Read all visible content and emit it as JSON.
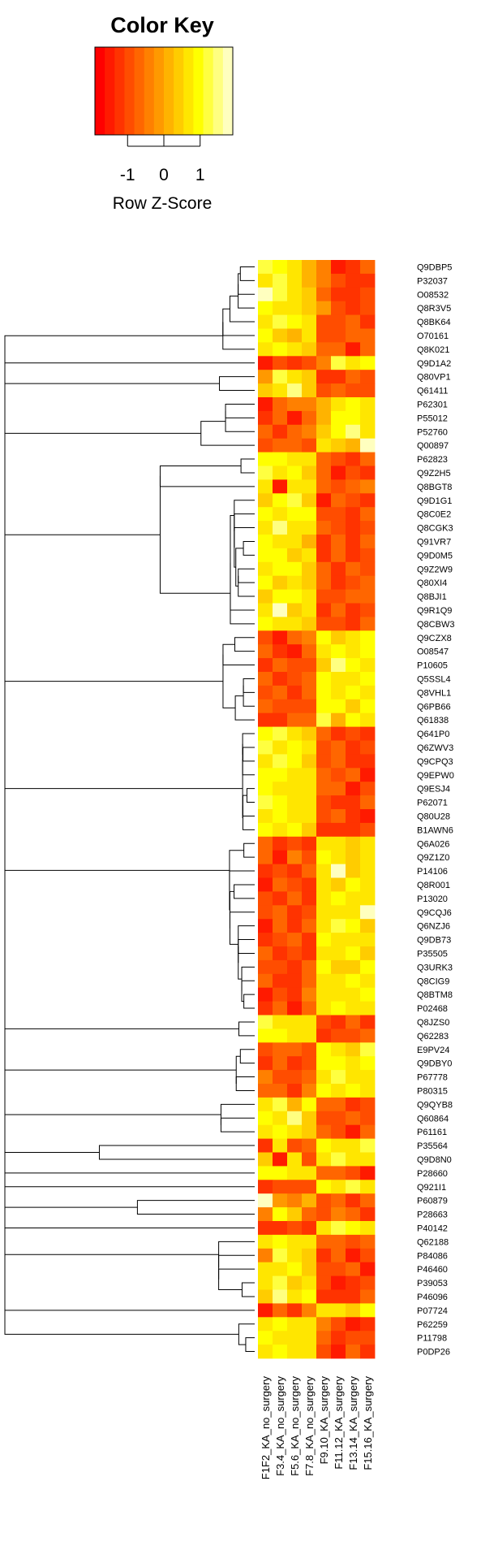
{
  "chart_data": {
    "type": "heatmap",
    "title": "",
    "color_key": {
      "title": "Color Key",
      "label": "Row Z-Score",
      "ticks": [
        {
          "value": -1,
          "label": "-1"
        },
        {
          "value": 0,
          "label": "0"
        },
        {
          "value": 1,
          "label": "1"
        }
      ],
      "range": [
        -1.9,
        1.9
      ],
      "palette": [
        "#ff0000",
        "#ff1a00",
        "#ff3300",
        "#ff4d00",
        "#ff6600",
        "#ff8000",
        "#ff9900",
        "#ffb300",
        "#ffcc00",
        "#ffe600",
        "#ffff00",
        "#ffff40",
        "#ffff80",
        "#ffffbf"
      ]
    },
    "columns": [
      "F1F2_KA_no_surgery",
      "F3.4_KA_no_surgery",
      "F5.6_KA_no_surgery",
      "F7.8_KA_no_surgery",
      "F9.10_KA_surgery",
      "F11.12_KA_surgery",
      "F13.14_KA_surgery",
      "F15.16_KA_surgery"
    ],
    "rows": [
      "Q9DBP5",
      "P32037",
      "O08532",
      "Q8R3V5",
      "Q8BK64",
      "O70161",
      "Q8K021",
      "Q9D1A2",
      "Q80VP1",
      "Q61411",
      "P62301",
      "P55012",
      "P52760",
      "Q00897",
      "P62823",
      "Q9Z2H5",
      "Q8BGT8",
      "Q9D1G1",
      "Q8C0E2",
      "Q8CGK3",
      "Q91VR7",
      "Q9D0M5",
      "Q9Z2W9",
      "Q80XI4",
      "Q8BJI1",
      "Q9R1Q9",
      "Q8CBW3",
      "Q9CZX8",
      "O08547",
      "P10605",
      "Q5SSL4",
      "Q8VHL1",
      "Q6PB66",
      "Q61838",
      "Q641P0",
      "Q6ZWV3",
      "Q9CPQ3",
      "Q9EPW0",
      "Q9ESJ4",
      "P62071",
      "Q80U28",
      "B1AWN6",
      "Q6A026",
      "Q9Z1Z0",
      "P14106",
      "Q8R001",
      "P13020",
      "Q9CQJ6",
      "Q6NZJ6",
      "Q9DB73",
      "P35505",
      "Q3URK3",
      "Q8CIG9",
      "Q8BTM8",
      "P02468",
      "Q8JZS0",
      "Q62283",
      "E9PV24",
      "Q9DBY0",
      "P67778",
      "P80315",
      "Q9QYB8",
      "Q60864",
      "P61161",
      "P35564",
      "Q9D8N0",
      "P28660",
      "Q921I1",
      "P60879",
      "P28663",
      "P40142",
      "Q62188",
      "P84086",
      "P46460",
      "P39053",
      "P46096",
      "P07724",
      "P62259",
      "P11798",
      "P0DP26"
    ],
    "values": [
      [
        1.1,
        1.0,
        0.6,
        0.1,
        -0.5,
        -1.4,
        -1.3,
        -0.7
      ],
      [
        0.8,
        1.2,
        0.8,
        0.2,
        -0.3,
        -1.0,
        -1.3,
        -1.1
      ],
      [
        1.7,
        1.1,
        0.7,
        0.3,
        -0.6,
        -1.1,
        -1.2,
        -0.9
      ],
      [
        0.9,
        0.8,
        0.8,
        0.4,
        -0.1,
        -0.9,
        -1.2,
        -1.0
      ],
      [
        0.6,
        1.3,
        0.9,
        0.6,
        -0.9,
        -1.0,
        -0.8,
        -1.2
      ],
      [
        0.9,
        0.5,
        0.1,
        0.7,
        -0.9,
        -1.0,
        -0.6,
        -0.8
      ],
      [
        0.7,
        1.0,
        0.8,
        0.5,
        -0.8,
        -0.7,
        -1.5,
        -0.8
      ],
      [
        -1.4,
        -0.9,
        -1.3,
        -1.0,
        -0.3,
        1.3,
        0.8,
        0.9
      ],
      [
        -0.2,
        1.3,
        0.8,
        0.4,
        -1.1,
        -1.1,
        -0.6,
        -0.9
      ],
      [
        0.4,
        0.7,
        1.6,
        0.5,
        -0.9,
        -0.8,
        -1.0,
        -0.9
      ],
      [
        -1.5,
        -0.8,
        -0.4,
        -0.4,
        0.1,
        0.8,
        1.0,
        0.8
      ],
      [
        -1.1,
        -0.6,
        -1.4,
        -0.6,
        0.2,
        1.0,
        0.9,
        0.7
      ],
      [
        -0.7,
        -1.2,
        -0.7,
        -0.5,
        0.5,
        0.9,
        1.5,
        0.6
      ],
      [
        -0.9,
        -0.8,
        -0.6,
        -0.9,
        0.6,
        0.3,
        0.2,
        1.8
      ],
      [
        1.0,
        0.9,
        0.8,
        0.7,
        -0.6,
        -1.0,
        -1.2,
        -0.8
      ],
      [
        1.1,
        0.8,
        0.9,
        0.5,
        -0.7,
        -1.5,
        -0.9,
        -1.1
      ],
      [
        0.7,
        -1.4,
        0.6,
        0.8,
        -0.8,
        -1.0,
        -0.7,
        -0.5
      ],
      [
        0.5,
        1.0,
        1.1,
        0.5,
        -1.5,
        -0.7,
        -0.9,
        -1.1
      ],
      [
        1.0,
        0.6,
        1.0,
        0.9,
        -0.9,
        -1.0,
        -1.2,
        -0.8
      ],
      [
        0.8,
        1.6,
        0.6,
        0.8,
        -0.8,
        -0.9,
        -1.1,
        -0.9
      ],
      [
        0.9,
        0.8,
        0.7,
        0.2,
        -1.3,
        -0.6,
        -1.2,
        -0.7
      ],
      [
        1.0,
        0.9,
        0.5,
        0.6,
        -1.1,
        -0.8,
        -1.3,
        -1.0
      ],
      [
        0.7,
        1.0,
        0.9,
        0.4,
        -0.8,
        -1.1,
        -0.6,
        -0.9
      ],
      [
        0.9,
        0.4,
        0.8,
        0.5,
        -0.7,
        -1.3,
        -1.0,
        -0.8
      ],
      [
        0.3,
        0.9,
        1.0,
        0.6,
        -0.9,
        -1.0,
        -0.8,
        -0.7
      ],
      [
        0.8,
        1.7,
        0.3,
        0.6,
        -1.2,
        -0.7,
        -1.2,
        -0.9
      ],
      [
        1.0,
        0.7,
        0.6,
        0.3,
        -0.9,
        -0.9,
        -1.1,
        -0.6
      ],
      [
        -1.0,
        -1.4,
        -0.7,
        -0.5,
        0.9,
        0.5,
        0.6,
        1.0
      ],
      [
        -0.8,
        -1.1,
        -1.4,
        -0.6,
        0.8,
        0.9,
        0.6,
        0.9
      ],
      [
        -1.1,
        -0.8,
        -1.0,
        -0.9,
        0.5,
        1.6,
        0.9,
        0.7
      ],
      [
        -0.7,
        -1.2,
        -0.9,
        -0.8,
        1.0,
        0.7,
        0.8,
        0.9
      ],
      [
        -0.9,
        -0.8,
        -1.2,
        -0.6,
        0.9,
        0.6,
        1.0,
        0.8
      ],
      [
        -0.6,
        -1.0,
        -1.0,
        -0.9,
        1.0,
        0.9,
        0.5,
        1.0
      ],
      [
        -1.2,
        -1.1,
        -0.8,
        -0.8,
        1.3,
        0.2,
        0.9,
        0.6
      ],
      [
        1.0,
        1.2,
        0.7,
        0.5,
        -0.6,
        -1.1,
        -0.9,
        -1.1
      ],
      [
        1.2,
        0.8,
        1.0,
        0.6,
        -1.0,
        -0.8,
        -1.2,
        -0.9
      ],
      [
        0.8,
        1.1,
        0.9,
        0.4,
        -0.9,
        -0.7,
        -1.1,
        -1.2
      ],
      [
        0.9,
        1.0,
        0.6,
        0.7,
        -0.8,
        -1.0,
        -0.8,
        -1.5
      ],
      [
        1.0,
        0.8,
        0.8,
        0.7,
        -0.8,
        -0.8,
        -1.4,
        -1.0
      ],
      [
        1.1,
        0.9,
        0.6,
        0.6,
        -0.9,
        -1.1,
        -1.2,
        -0.8
      ],
      [
        0.8,
        1.0,
        0.7,
        0.6,
        -1.0,
        -0.7,
        -1.3,
        -1.4
      ],
      [
        0.9,
        0.8,
        0.9,
        0.5,
        -1.3,
        -1.2,
        -1.3,
        -1.0
      ],
      [
        -0.6,
        -1.3,
        -0.9,
        -1.2,
        0.7,
        0.6,
        0.5,
        0.8
      ],
      [
        -0.8,
        -1.4,
        -0.5,
        -1.0,
        0.9,
        0.8,
        0.4,
        0.6
      ],
      [
        -1.2,
        -0.9,
        -1.3,
        -0.8,
        0.8,
        1.7,
        0.5,
        0.7
      ],
      [
        -1.4,
        -0.7,
        -1.0,
        -1.2,
        0.6,
        0.4,
        0.9,
        0.8
      ],
      [
        -0.9,
        -1.1,
        -0.8,
        -1.3,
        0.8,
        0.9,
        0.6,
        0.7
      ],
      [
        -1.0,
        -0.8,
        -1.2,
        -0.9,
        0.7,
        0.6,
        0.8,
        1.7
      ],
      [
        -1.5,
        -0.8,
        -1.1,
        -0.6,
        0.6,
        1.2,
        0.9,
        0.5
      ],
      [
        -1.3,
        -1.0,
        -0.8,
        -1.1,
        0.9,
        0.8,
        0.6,
        0.8
      ],
      [
        -0.7,
        -1.2,
        -0.9,
        -1.1,
        0.8,
        0.6,
        0.9,
        0.5
      ],
      [
        -1.0,
        -0.9,
        -1.3,
        -0.7,
        0.9,
        0.4,
        0.5,
        0.9
      ],
      [
        -0.8,
        -1.1,
        -1.2,
        -0.8,
        0.7,
        0.8,
        0.9,
        0.6
      ],
      [
        -1.5,
        -0.9,
        -1.1,
        -0.5,
        0.6,
        0.7,
        0.8,
        0.9
      ],
      [
        -1.2,
        -0.8,
        -1.4,
        -0.8,
        0.8,
        0.9,
        0.7,
        0.8
      ],
      [
        1.3,
        0.6,
        0.8,
        0.7,
        -1.0,
        -1.1,
        -0.7,
        -1.2
      ],
      [
        1.0,
        0.9,
        0.8,
        0.6,
        -1.2,
        -0.9,
        -1.0,
        -0.7
      ],
      [
        -1.0,
        -0.6,
        -0.8,
        -0.9,
        1.0,
        0.8,
        0.3,
        1.2
      ],
      [
        -1.1,
        -0.6,
        -1.3,
        -1.0,
        0.9,
        0.9,
        0.7,
        0.9
      ],
      [
        -0.4,
        -1.0,
        -1.0,
        -0.6,
        0.7,
        1.2,
        0.8,
        0.7
      ],
      [
        -0.8,
        -0.7,
        -1.2,
        -0.5,
        0.9,
        0.6,
        1.0,
        0.7
      ],
      [
        0.7,
        1.1,
        0.2,
        0.9,
        -0.7,
        -0.8,
        -1.3,
        -0.9
      ],
      [
        0.9,
        0.6,
        1.6,
        0.5,
        -0.9,
        -1.0,
        -0.7,
        -1.0
      ],
      [
        0.8,
        1.0,
        0.7,
        0.3,
        -0.8,
        -0.9,
        -1.4,
        -0.8
      ],
      [
        -1.3,
        0.7,
        -1.0,
        -0.8,
        1.0,
        0.8,
        0.6,
        1.1
      ],
      [
        0.5,
        -1.4,
        0.6,
        -0.9,
        0.8,
        1.3,
        0.6,
        0.8
      ],
      [
        0.9,
        1.0,
        0.7,
        0.8,
        -0.7,
        -0.8,
        -0.9,
        -1.5
      ],
      [
        -1.1,
        -1.0,
        -1.0,
        -0.9,
        0.9,
        0.7,
        1.1,
        0.8
      ],
      [
        1.8,
        -0.2,
        -0.4,
        0.1,
        -1.0,
        -0.8,
        -1.3,
        -0.7
      ],
      [
        -0.3,
        0.9,
        0.4,
        -0.6,
        -0.9,
        -0.5,
        -0.7,
        -1.2
      ],
      [
        -1.2,
        -1.1,
        -1.0,
        -1.2,
        0.7,
        1.3,
        0.9,
        0.6
      ],
      [
        0.8,
        0.9,
        0.6,
        0.7,
        -0.8,
        -0.6,
        -0.9,
        -0.7
      ],
      [
        -0.4,
        1.1,
        0.6,
        0.5,
        -1.3,
        -0.8,
        -1.4,
        -0.9
      ],
      [
        0.7,
        0.8,
        0.9,
        0.4,
        -0.9,
        -1.0,
        -0.6,
        -1.5
      ],
      [
        0.6,
        1.3,
        0.3,
        0.6,
        -1.0,
        -1.4,
        -1.2,
        -0.9
      ],
      [
        0.3,
        1.4,
        0.6,
        0.9,
        -1.2,
        -1.1,
        -1.3,
        -0.7
      ],
      [
        -1.5,
        -0.8,
        -1.2,
        -0.5,
        0.8,
        0.7,
        0.4,
        0.9
      ],
      [
        0.7,
        0.9,
        0.8,
        0.6,
        -0.5,
        -1.0,
        -1.4,
        -1.3
      ],
      [
        0.9,
        0.7,
        0.8,
        0.7,
        -0.8,
        -1.2,
        -1.0,
        -0.9
      ],
      [
        0.8,
        1.0,
        0.7,
        0.6,
        -0.9,
        -1.5,
        -0.8,
        -1.1
      ]
    ],
    "dendrogram": {
      "rows": true,
      "columns": false
    }
  }
}
